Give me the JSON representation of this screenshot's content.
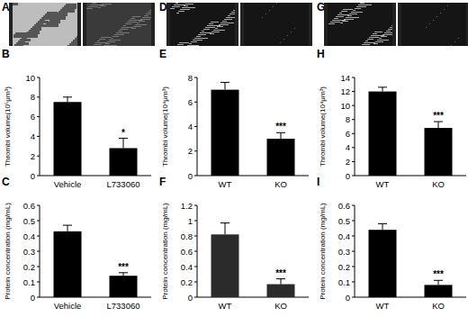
{
  "image_panels": [
    {
      "label": "A"
    },
    {
      "label": "D"
    },
    {
      "label": "G"
    }
  ],
  "chart_data": [
    {
      "type": "bar",
      "title": "B",
      "y_label": "Thrombi volume(10⁵μm³)",
      "categories": [
        "Vehicle",
        "L733060"
      ],
      "values": [
        7.5,
        2.8
      ],
      "errors": [
        0.5,
        1.0
      ],
      "significance": [
        null,
        "*"
      ],
      "color": "#000000",
      "ylim": [
        0,
        10
      ],
      "yticks": [
        0,
        2,
        4,
        6,
        8,
        10
      ]
    },
    {
      "type": "bar",
      "title": "C",
      "y_label": "Protein concentration (mg/mL)",
      "categories": [
        "Vehicle",
        "L733060"
      ],
      "values": [
        0.43,
        0.14
      ],
      "errors": [
        0.04,
        0.02
      ],
      "significance": [
        null,
        "***"
      ],
      "color": "#000000",
      "ylim": [
        0,
        0.6
      ],
      "yticks": [
        0,
        0.1,
        0.2,
        0.3,
        0.4,
        0.5,
        0.6
      ]
    },
    {
      "type": "bar",
      "title": "E",
      "y_label": "Thrombi volume(10⁴μm³)",
      "categories": [
        "WT",
        "KO"
      ],
      "values": [
        7.0,
        3.0
      ],
      "errors": [
        0.6,
        0.5
      ],
      "significance": [
        null,
        "***"
      ],
      "color": "#000000",
      "ylim": [
        0,
        8
      ],
      "yticks": [
        0,
        2,
        4,
        6,
        8
      ]
    },
    {
      "type": "bar",
      "title": "F",
      "y_label": "Protein concentration (mg/mL)",
      "categories": [
        "WT",
        "KO"
      ],
      "values": [
        0.82,
        0.17
      ],
      "errors": [
        0.15,
        0.07
      ],
      "significance": [
        null,
        "***"
      ],
      "color": "#2b2b2b",
      "ylim": [
        0,
        1.2
      ],
      "yticks": [
        0,
        0.2,
        0.4,
        0.6,
        0.8,
        1,
        1.2
      ]
    },
    {
      "type": "bar",
      "title": "H",
      "y_label": "Thrombi volume(10⁴μm³)",
      "categories": [
        "WT",
        "KO"
      ],
      "values": [
        12,
        6.8
      ],
      "errors": [
        0.6,
        0.9
      ],
      "significance": [
        null,
        "***"
      ],
      "color": "#000000",
      "ylim": [
        0,
        14
      ],
      "yticks": [
        0,
        2,
        4,
        6,
        8,
        10,
        12,
        14
      ]
    },
    {
      "type": "bar",
      "title": "I",
      "y_label": "Protein concentration (mg/mL)",
      "categories": [
        "WT",
        "KO"
      ],
      "values": [
        0.44,
        0.08
      ],
      "errors": [
        0.04,
        0.03
      ],
      "significance": [
        null,
        "***"
      ],
      "color": "#000000",
      "ylim": [
        0,
        0.6
      ],
      "yticks": [
        0,
        0.1,
        0.2,
        0.3,
        0.4,
        0.5,
        0.6
      ]
    }
  ]
}
